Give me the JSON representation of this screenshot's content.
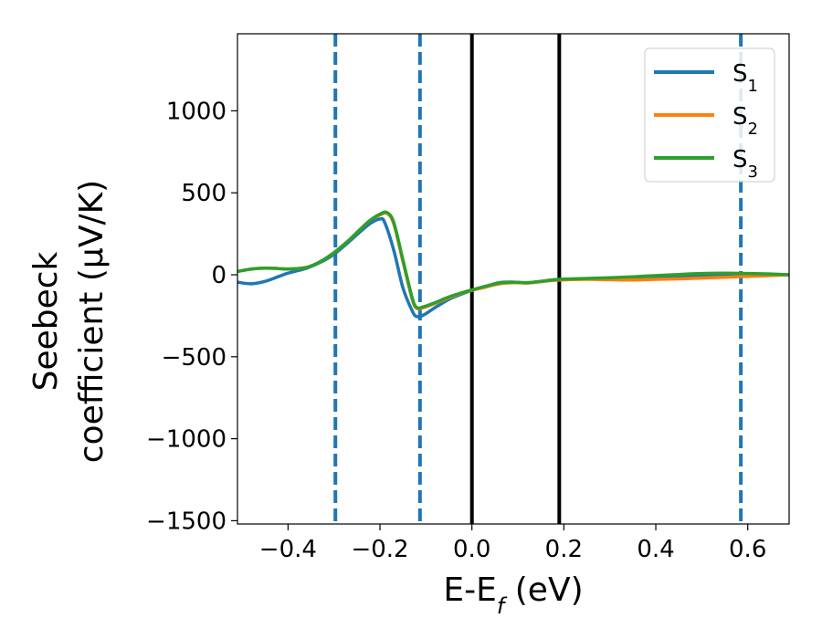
{
  "chart_data": {
    "type": "line",
    "title": "",
    "xlabel": {
      "main": "E-E",
      "sub": "f",
      "unit": " (eV)"
    },
    "ylabel": {
      "line1": "Seebeck",
      "line2": "coefficient  (μV/K)"
    },
    "xlim": [
      -0.51,
      0.69
    ],
    "ylim": [
      -1520,
      1470
    ],
    "xticks": [
      -0.4,
      -0.2,
      0.0,
      0.2,
      0.4,
      0.6
    ],
    "xtick_labels": [
      "−0.4",
      "−0.2",
      "0.0",
      "0.2",
      "0.4",
      "0.6"
    ],
    "yticks": [
      -1500,
      -1000,
      -500,
      0,
      500,
      1000
    ],
    "ytick_labels": [
      "−1500",
      "−1000",
      "−500",
      "0",
      "500",
      "1000"
    ],
    "grid": false,
    "legend_position": "top-right",
    "vlines": [
      {
        "x": -0.297,
        "style": "dashed",
        "color": "#1f77b4"
      },
      {
        "x": -0.113,
        "style": "dashed",
        "color": "#1f77b4"
      },
      {
        "x": 0.0,
        "style": "solid",
        "color": "#000000"
      },
      {
        "x": 0.19,
        "style": "solid",
        "color": "#000000"
      },
      {
        "x": 0.585,
        "style": "dashed",
        "color": "#1f77b4"
      }
    ],
    "series": [
      {
        "name": "S",
        "sub": "1",
        "color": "#1f77b4",
        "x": [
          -0.51,
          -0.48,
          -0.45,
          -0.42,
          -0.4,
          -0.36,
          -0.33,
          -0.3,
          -0.27,
          -0.24,
          -0.22,
          -0.2,
          -0.19,
          -0.17,
          -0.15,
          -0.13,
          -0.12,
          -0.105,
          -0.08,
          -0.05,
          -0.02,
          0.0,
          0.03,
          0.06,
          0.09,
          0.12,
          0.15,
          0.19,
          0.25,
          0.3,
          0.35,
          0.4,
          0.45,
          0.5,
          0.55,
          0.6,
          0.65,
          0.69
        ],
        "y": [
          -45,
          -55,
          -40,
          -10,
          10,
          40,
          75,
          125,
          195,
          270,
          315,
          340,
          320,
          150,
          -80,
          -220,
          -255,
          -245,
          -200,
          -150,
          -115,
          -95,
          -70,
          -48,
          -45,
          -50,
          -40,
          -28,
          -25,
          -22,
          -18,
          -15,
          -12,
          -10,
          -8,
          -5,
          -3,
          0
        ]
      },
      {
        "name": "S",
        "sub": "2",
        "color": "#ff7f0e",
        "x": [
          -0.51,
          -0.48,
          -0.45,
          -0.42,
          -0.4,
          -0.36,
          -0.33,
          -0.3,
          -0.27,
          -0.24,
          -0.22,
          -0.2,
          -0.185,
          -0.17,
          -0.15,
          -0.13,
          -0.12,
          -0.105,
          -0.08,
          -0.05,
          -0.02,
          0.0,
          0.03,
          0.06,
          0.09,
          0.12,
          0.15,
          0.19,
          0.25,
          0.3,
          0.35,
          0.4,
          0.45,
          0.5,
          0.55,
          0.6,
          0.65,
          0.69
        ],
        "y": [
          20,
          35,
          40,
          38,
          35,
          45,
          80,
          135,
          205,
          285,
          335,
          365,
          375,
          310,
          80,
          -150,
          -205,
          -200,
          -175,
          -140,
          -110,
          -95,
          -75,
          -55,
          -48,
          -50,
          -42,
          -32,
          -28,
          -30,
          -32,
          -28,
          -25,
          -20,
          -15,
          -10,
          -5,
          0
        ]
      },
      {
        "name": "S",
        "sub": "3",
        "color": "#2ca02c",
        "x": [
          -0.51,
          -0.48,
          -0.45,
          -0.42,
          -0.4,
          -0.36,
          -0.33,
          -0.3,
          -0.27,
          -0.24,
          -0.22,
          -0.2,
          -0.185,
          -0.17,
          -0.15,
          -0.13,
          -0.12,
          -0.105,
          -0.08,
          -0.05,
          -0.02,
          0.0,
          0.03,
          0.06,
          0.09,
          0.12,
          0.15,
          0.19,
          0.25,
          0.3,
          0.35,
          0.4,
          0.45,
          0.5,
          0.55,
          0.6,
          0.65,
          0.69
        ],
        "y": [
          20,
          35,
          40,
          38,
          35,
          45,
          80,
          135,
          205,
          285,
          335,
          370,
          380,
          320,
          90,
          -140,
          -200,
          -195,
          -170,
          -135,
          -108,
          -92,
          -70,
          -50,
          -45,
          -48,
          -40,
          -28,
          -22,
          -18,
          -12,
          -5,
          2,
          8,
          10,
          8,
          5,
          0
        ]
      }
    ]
  }
}
